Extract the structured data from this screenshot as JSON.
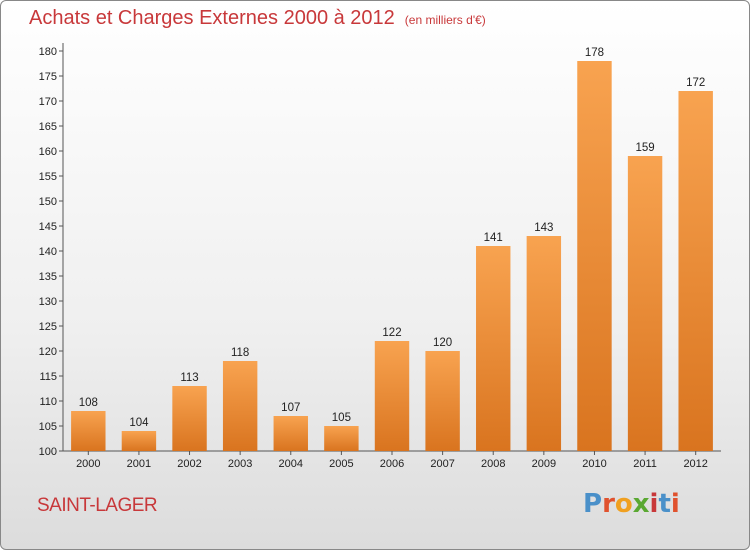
{
  "header": {
    "title": "Achats et Charges Externes 2000 à 2012",
    "subtitle": "(en milliers d'€)"
  },
  "footer": {
    "place": "SAINT-LAGER",
    "logo": "Proxiti"
  },
  "colors": {
    "title": "#c8383a",
    "bar_light": "#f8a350",
    "bar_dark": "#d9741f",
    "logo": [
      "#4a90c9",
      "#e0522e",
      "#f0a020",
      "#5aa832",
      "#c8383a",
      "#4a90c9",
      "#e0522e"
    ]
  },
  "chart_data": {
    "type": "bar",
    "title": "Achats et Charges Externes 2000 à 2012",
    "subtitle": "(en milliers d'€)",
    "categories": [
      "2000",
      "2001",
      "2002",
      "2003",
      "2004",
      "2005",
      "2006",
      "2007",
      "2008",
      "2009",
      "2010",
      "2011",
      "2012"
    ],
    "values": [
      108,
      104,
      113,
      118,
      107,
      105,
      122,
      120,
      141,
      143,
      178,
      159,
      172
    ],
    "ylim": [
      100,
      180
    ],
    "ytick_step": 5,
    "grid": false,
    "legend": "none"
  }
}
